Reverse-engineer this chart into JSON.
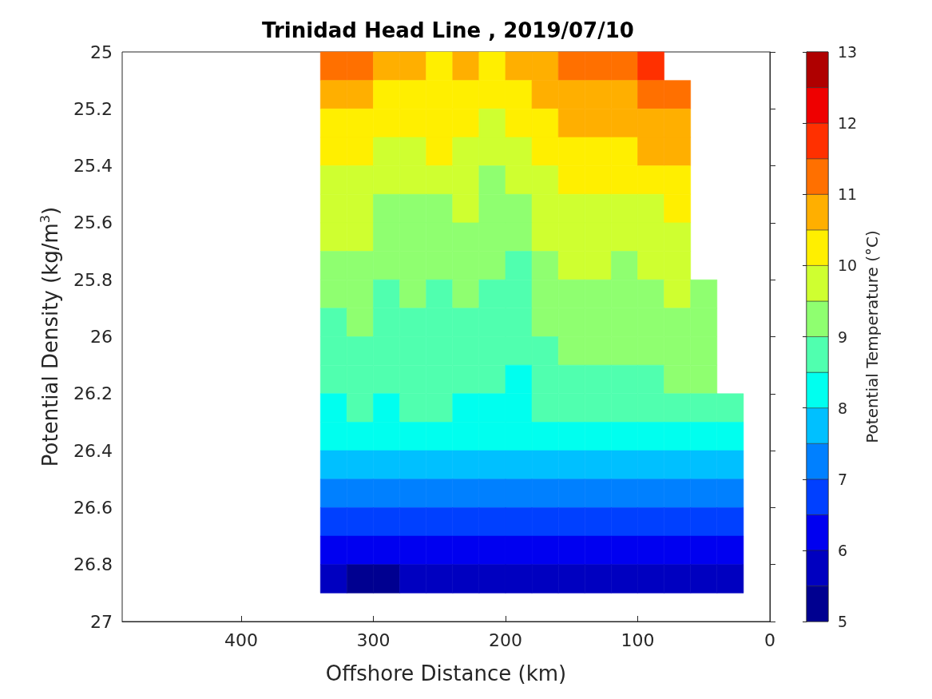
{
  "chart_data": {
    "type": "heatmap",
    "title": "Trinidad Head Line , 2019/07/10",
    "xlabel": "Offshore Distance (km)",
    "ylabel": "Potential Density (kg/m$^{3}$)",
    "clabel": "Potential Temperature (°C)",
    "xlim": [
      490,
      0
    ],
    "xticks": [
      400,
      300,
      200,
      100,
      0
    ],
    "ylim": [
      27,
      25
    ],
    "yticks": [
      25,
      25.2,
      25.4,
      25.6,
      25.8,
      26,
      26.2,
      26.4,
      26.6,
      26.8,
      27
    ],
    "clim": [
      5,
      13
    ],
    "cticks": [
      5,
      6,
      7,
      8,
      9,
      10,
      11,
      12,
      13
    ],
    "colors": [
      "#000090",
      "#0000c0",
      "#0000f0",
      "#0040ff",
      "#0080ff",
      "#00c0ff",
      "#00ffef",
      "#50ffaf",
      "#8fff70",
      "#cfff30",
      "#ffef00",
      "#ffaf00",
      "#ff7000",
      "#ff3000",
      "#ef0000",
      "#af0000"
    ],
    "x": [
      330,
      310,
      290,
      270,
      250,
      230,
      210,
      190,
      170,
      150,
      130,
      110,
      90,
      70,
      50,
      30
    ],
    "y": [
      25.05,
      25.15,
      25.25,
      25.35,
      25.45,
      25.55,
      25.65,
      25.75,
      25.85,
      25.95,
      26.05,
      26.15,
      26.25,
      26.35,
      26.45,
      26.55,
      26.65,
      26.75,
      26.85
    ],
    "cells": [
      [
        11.25,
        11.25,
        10.75,
        10.75,
        10.25,
        10.75,
        10.25,
        10.75,
        10.75,
        11.25,
        11.25,
        11.25,
        11.75,
        null,
        null,
        null
      ],
      [
        10.75,
        10.75,
        10.25,
        10.25,
        10.25,
        10.25,
        10.25,
        10.25,
        10.75,
        10.75,
        10.75,
        10.75,
        11.25,
        11.25,
        null,
        null
      ],
      [
        10.25,
        10.25,
        10.25,
        10.25,
        10.25,
        10.25,
        9.75,
        10.25,
        10.25,
        10.75,
        10.75,
        10.75,
        10.75,
        10.75,
        null,
        null
      ],
      [
        10.25,
        10.25,
        9.75,
        9.75,
        10.25,
        9.75,
        9.75,
        9.75,
        10.25,
        10.25,
        10.25,
        10.25,
        10.75,
        10.75,
        null,
        null
      ],
      [
        9.75,
        9.75,
        9.75,
        9.75,
        9.75,
        9.75,
        9.25,
        9.75,
        9.75,
        10.25,
        10.25,
        10.25,
        10.25,
        10.25,
        null,
        null
      ],
      [
        9.75,
        9.75,
        9.25,
        9.25,
        9.25,
        9.75,
        9.25,
        9.25,
        9.75,
        9.75,
        9.75,
        9.75,
        9.75,
        10.25,
        null,
        null
      ],
      [
        9.75,
        9.75,
        9.25,
        9.25,
        9.25,
        9.25,
        9.25,
        9.25,
        9.75,
        9.75,
        9.75,
        9.75,
        9.75,
        9.75,
        null,
        null
      ],
      [
        9.25,
        9.25,
        9.25,
        9.25,
        9.25,
        9.25,
        9.25,
        8.75,
        9.25,
        9.75,
        9.75,
        9.25,
        9.75,
        9.75,
        null,
        null
      ],
      [
        9.25,
        9.25,
        8.75,
        9.25,
        8.75,
        9.25,
        8.75,
        8.75,
        9.25,
        9.25,
        9.25,
        9.25,
        9.25,
        9.75,
        9.25,
        null
      ],
      [
        8.75,
        9.25,
        8.75,
        8.75,
        8.75,
        8.75,
        8.75,
        8.75,
        9.25,
        9.25,
        9.25,
        9.25,
        9.25,
        9.25,
        9.25,
        null
      ],
      [
        8.75,
        8.75,
        8.75,
        8.75,
        8.75,
        8.75,
        8.75,
        8.75,
        8.75,
        9.25,
        9.25,
        9.25,
        9.25,
        9.25,
        9.25,
        null
      ],
      [
        8.75,
        8.75,
        8.75,
        8.75,
        8.75,
        8.75,
        8.75,
        8.25,
        8.75,
        8.75,
        8.75,
        8.75,
        8.75,
        9.25,
        9.25,
        null
      ],
      [
        8.25,
        8.75,
        8.25,
        8.75,
        8.75,
        8.25,
        8.25,
        8.25,
        8.75,
        8.75,
        8.75,
        8.75,
        8.75,
        8.75,
        8.75,
        8.75
      ],
      [
        8.25,
        8.25,
        8.25,
        8.25,
        8.25,
        8.25,
        8.25,
        8.25,
        8.25,
        8.25,
        8.25,
        8.25,
        8.25,
        8.25,
        8.25,
        8.25
      ],
      [
        7.75,
        7.75,
        7.75,
        7.75,
        7.75,
        7.75,
        7.75,
        7.75,
        7.75,
        7.75,
        7.75,
        7.75,
        7.75,
        7.75,
        7.75,
        7.75
      ],
      [
        7.25,
        7.25,
        7.25,
        7.25,
        7.25,
        7.25,
        7.25,
        7.25,
        7.25,
        7.25,
        7.25,
        7.25,
        7.25,
        7.25,
        7.25,
        7.25
      ],
      [
        6.75,
        6.75,
        6.75,
        6.75,
        6.75,
        6.75,
        6.75,
        6.75,
        6.75,
        6.75,
        6.75,
        6.75,
        6.75,
        6.75,
        6.75,
        6.75
      ],
      [
        6.25,
        6.25,
        6.25,
        6.25,
        6.25,
        6.25,
        6.25,
        6.25,
        6.25,
        6.25,
        6.25,
        6.25,
        6.25,
        6.25,
        6.25,
        6.25
      ],
      [
        5.75,
        5.25,
        5.25,
        5.75,
        5.75,
        5.75,
        5.75,
        5.75,
        5.75,
        5.75,
        5.75,
        5.75,
        5.75,
        5.75,
        5.75,
        5.75
      ]
    ]
  }
}
